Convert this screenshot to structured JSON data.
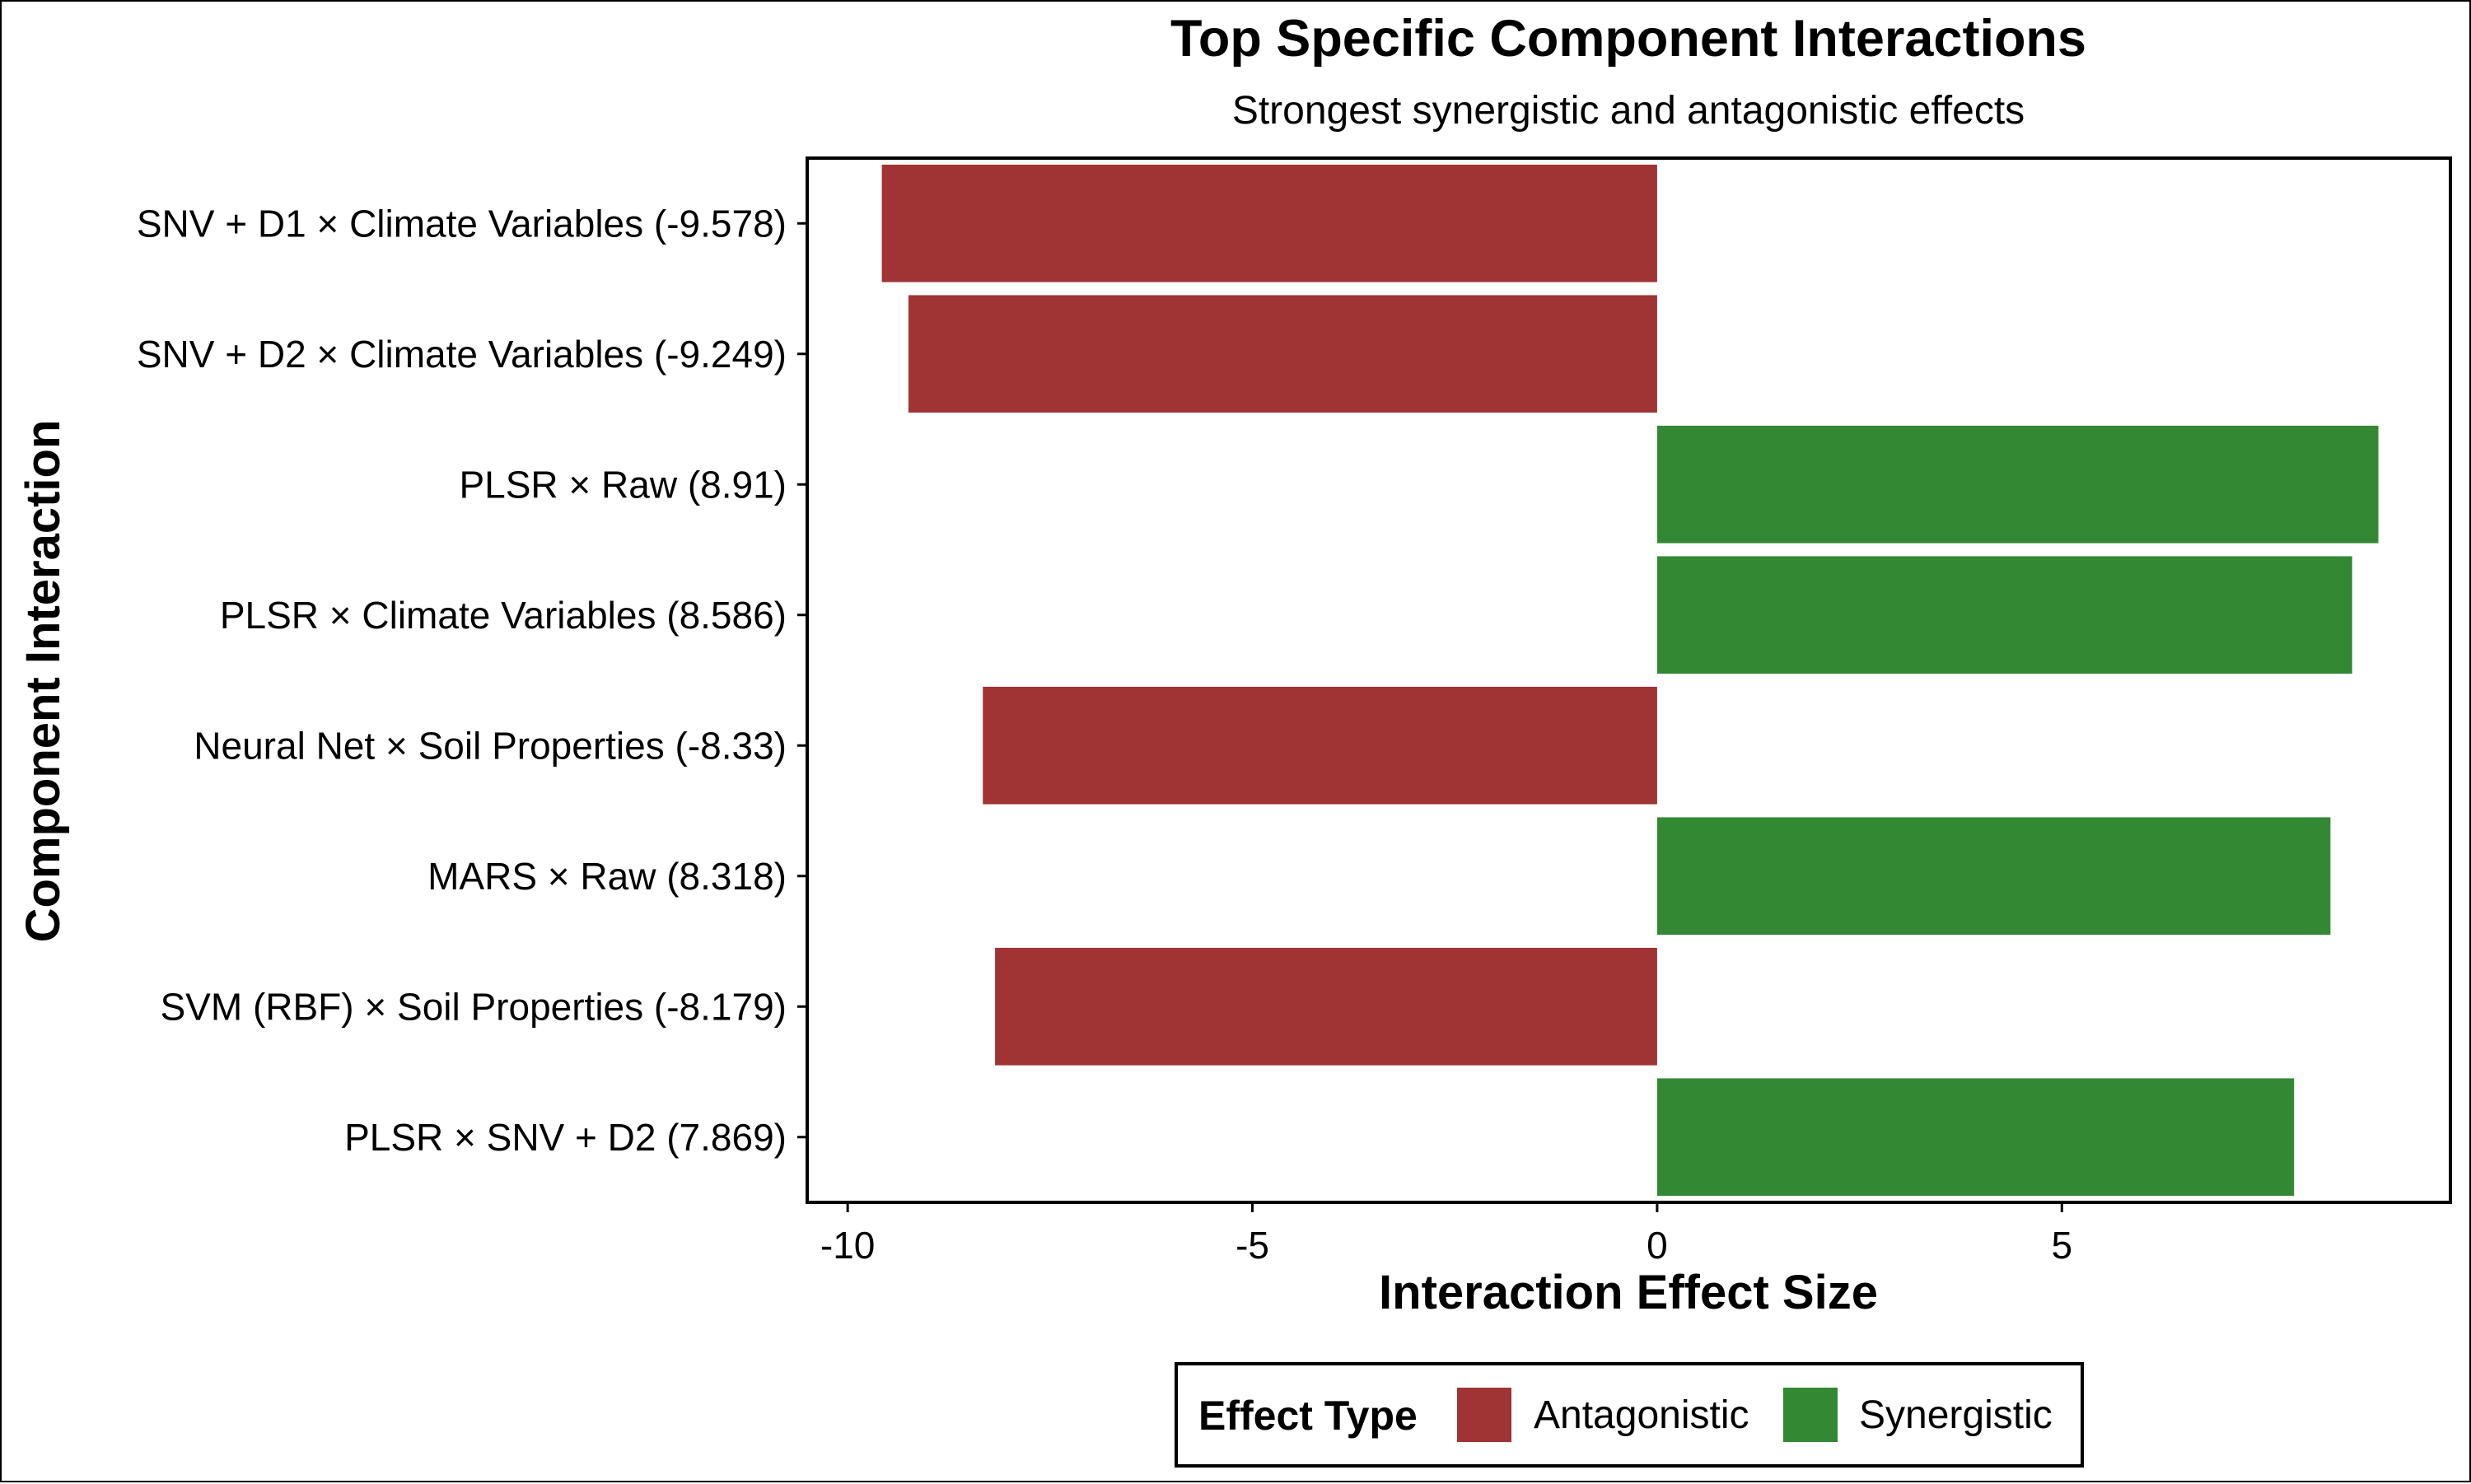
{
  "chart_data": {
    "type": "bar",
    "orientation": "horizontal",
    "title": "Top Specific Component Interactions",
    "subtitle": "Strongest synergistic and antagonistic effects",
    "xlabel": "Interaction Effect Size",
    "ylabel": "Component Interaction",
    "xlim": [
      -10.5,
      9.8
    ],
    "xticks": [
      -10,
      -5,
      0,
      5
    ],
    "xtick_labels": [
      "-10",
      "-5",
      "0",
      "5"
    ],
    "grid": false,
    "legend": {
      "title": "Effect Type",
      "placement": "bottom",
      "entries": [
        {
          "label": "Antagonistic",
          "color": "#A03333"
        },
        {
          "label": "Synergistic",
          "color": "#338833"
        }
      ]
    },
    "categories": [
      "SNV + D1 × Climate Variables (-9.578)",
      "SNV + D2 × Climate Variables (-9.249)",
      "PLSR × Raw (8.91)",
      "PLSR × Climate Variables (8.586)",
      "Neural Net × Soil Properties (-8.33)",
      "MARS × Raw (8.318)",
      "SVM (RBF) × Soil Properties (-8.179)",
      "PLSR × SNV + D2 (7.869)"
    ],
    "values": [
      -9.578,
      -9.249,
      8.91,
      8.586,
      -8.33,
      8.318,
      -8.179,
      7.869
    ],
    "effect_types": [
      "Antagonistic",
      "Antagonistic",
      "Synergistic",
      "Synergistic",
      "Antagonistic",
      "Synergistic",
      "Antagonistic",
      "Synergistic"
    ]
  }
}
